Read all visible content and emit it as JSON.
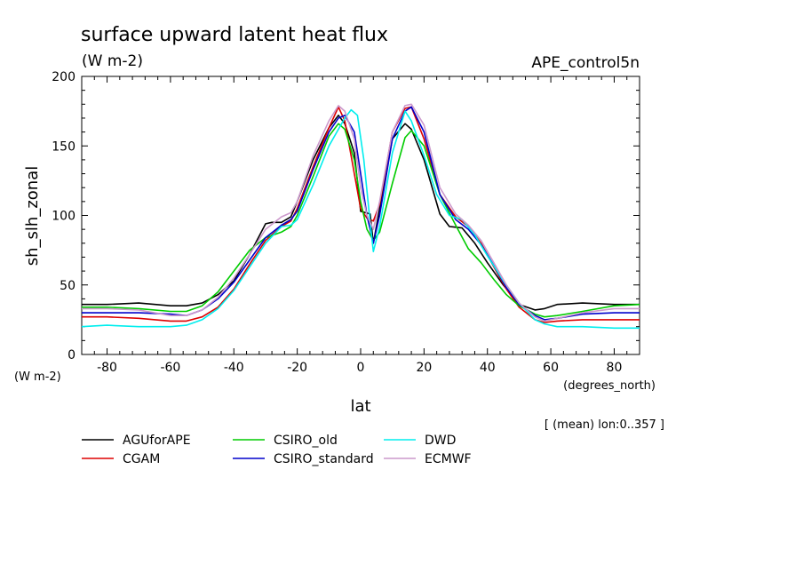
{
  "chart_data": {
    "type": "line",
    "title": "surface upward latent heat flux",
    "units_label": "(W m-2)",
    "run_label": "APE_control5n",
    "ylabel": "sh_slh_zonal",
    "y_units": "(W m-2)",
    "xlabel": "lat",
    "x_units": "(degrees_north)",
    "footnote": "[ (mean) lon:0..357 ]",
    "xlim": [
      -88,
      88
    ],
    "ylim": [
      0,
      200
    ],
    "x_ticks": [
      -80,
      -60,
      -40,
      -20,
      0,
      20,
      40,
      60,
      80
    ],
    "y_ticks": [
      0,
      50,
      100,
      150,
      200
    ],
    "x_tick_labels": [
      "-80",
      "-60",
      "-40",
      "-20",
      "0",
      "20",
      "40",
      "60",
      "80"
    ],
    "y_tick_labels": [
      "0",
      "50",
      "100",
      "150",
      "200"
    ],
    "grid": false,
    "legend_position": "bottom",
    "series": [
      {
        "name": "AGUforAPE",
        "color": "#000000",
        "points": [
          [
            -88,
            36
          ],
          [
            -80,
            36
          ],
          [
            -70,
            37
          ],
          [
            -60,
            35
          ],
          [
            -55,
            35
          ],
          [
            -50,
            37
          ],
          [
            -45,
            43
          ],
          [
            -40,
            53
          ],
          [
            -35,
            72
          ],
          [
            -30,
            94
          ],
          [
            -28,
            95
          ],
          [
            -25,
            95
          ],
          [
            -22,
            99
          ],
          [
            -20,
            110
          ],
          [
            -15,
            140
          ],
          [
            -10,
            163
          ],
          [
            -7,
            172
          ],
          [
            -5,
            166
          ],
          [
            -2,
            145
          ],
          [
            0,
            103
          ],
          [
            3,
            101
          ],
          [
            4,
            80
          ],
          [
            6,
            105
          ],
          [
            10,
            155
          ],
          [
            14,
            166
          ],
          [
            16,
            162
          ],
          [
            20,
            140
          ],
          [
            25,
            101
          ],
          [
            28,
            92
          ],
          [
            32,
            91
          ],
          [
            36,
            80
          ],
          [
            40,
            66
          ],
          [
            45,
            50
          ],
          [
            50,
            36
          ],
          [
            55,
            32
          ],
          [
            58,
            33
          ],
          [
            62,
            36
          ],
          [
            70,
            37
          ],
          [
            80,
            36
          ],
          [
            88,
            36
          ]
        ]
      },
      {
        "name": "CGAM",
        "color": "#dd0000",
        "points": [
          [
            -88,
            27
          ],
          [
            -80,
            27
          ],
          [
            -70,
            26
          ],
          [
            -60,
            24
          ],
          [
            -55,
            24
          ],
          [
            -50,
            27
          ],
          [
            -45,
            34
          ],
          [
            -40,
            47
          ],
          [
            -35,
            65
          ],
          [
            -30,
            82
          ],
          [
            -25,
            92
          ],
          [
            -22,
            96
          ],
          [
            -20,
            105
          ],
          [
            -15,
            135
          ],
          [
            -10,
            163
          ],
          [
            -7,
            178
          ],
          [
            -5,
            168
          ],
          [
            -2,
            130
          ],
          [
            0,
            105
          ],
          [
            2,
            98
          ],
          [
            4,
            96
          ],
          [
            6,
            108
          ],
          [
            10,
            160
          ],
          [
            14,
            177
          ],
          [
            16,
            178
          ],
          [
            20,
            155
          ],
          [
            25,
            115
          ],
          [
            30,
            99
          ],
          [
            34,
            92
          ],
          [
            38,
            80
          ],
          [
            42,
            63
          ],
          [
            46,
            47
          ],
          [
            50,
            34
          ],
          [
            55,
            25
          ],
          [
            58,
            23
          ],
          [
            62,
            24
          ],
          [
            70,
            25
          ],
          [
            80,
            25
          ],
          [
            88,
            25
          ]
        ]
      },
      {
        "name": "CSIRO_old",
        "color": "#00cc00",
        "points": [
          [
            -88,
            34
          ],
          [
            -80,
            34
          ],
          [
            -70,
            33
          ],
          [
            -60,
            31
          ],
          [
            -55,
            31
          ],
          [
            -50,
            35
          ],
          [
            -45,
            45
          ],
          [
            -40,
            60
          ],
          [
            -35,
            75
          ],
          [
            -30,
            84
          ],
          [
            -25,
            88
          ],
          [
            -22,
            92
          ],
          [
            -20,
            100
          ],
          [
            -15,
            128
          ],
          [
            -10,
            157
          ],
          [
            -7,
            166
          ],
          [
            -5,
            162
          ],
          [
            -2,
            140
          ],
          [
            0,
            110
          ],
          [
            2,
            90
          ],
          [
            4,
            82
          ],
          [
            6,
            88
          ],
          [
            10,
            123
          ],
          [
            14,
            156
          ],
          [
            16,
            161
          ],
          [
            20,
            150
          ],
          [
            25,
            115
          ],
          [
            30,
            93
          ],
          [
            34,
            76
          ],
          [
            38,
            66
          ],
          [
            42,
            54
          ],
          [
            46,
            43
          ],
          [
            50,
            35
          ],
          [
            55,
            29
          ],
          [
            58,
            27
          ],
          [
            62,
            28
          ],
          [
            70,
            31
          ],
          [
            80,
            35
          ],
          [
            88,
            36
          ]
        ]
      },
      {
        "name": "CSIRO_standard",
        "color": "#0000cc",
        "points": [
          [
            -88,
            30
          ],
          [
            -80,
            30
          ],
          [
            -70,
            30
          ],
          [
            -60,
            29
          ],
          [
            -55,
            28
          ],
          [
            -50,
            32
          ],
          [
            -45,
            40
          ],
          [
            -40,
            52
          ],
          [
            -35,
            68
          ],
          [
            -30,
            84
          ],
          [
            -25,
            93
          ],
          [
            -22,
            97
          ],
          [
            -20,
            103
          ],
          [
            -15,
            133
          ],
          [
            -10,
            160
          ],
          [
            -7,
            170
          ],
          [
            -5,
            172
          ],
          [
            -2,
            160
          ],
          [
            0,
            130
          ],
          [
            2,
            100
          ],
          [
            4,
            80
          ],
          [
            6,
            100
          ],
          [
            10,
            155
          ],
          [
            14,
            175
          ],
          [
            16,
            178
          ],
          [
            20,
            160
          ],
          [
            25,
            115
          ],
          [
            30,
            97
          ],
          [
            34,
            90
          ],
          [
            38,
            79
          ],
          [
            42,
            64
          ],
          [
            46,
            48
          ],
          [
            50,
            36
          ],
          [
            55,
            28
          ],
          [
            58,
            25
          ],
          [
            62,
            26
          ],
          [
            70,
            29
          ],
          [
            80,
            30
          ],
          [
            88,
            30
          ]
        ]
      },
      {
        "name": "DWD",
        "color": "#00eeee",
        "points": [
          [
            -88,
            20
          ],
          [
            -80,
            21
          ],
          [
            -70,
            20
          ],
          [
            -60,
            20
          ],
          [
            -55,
            21
          ],
          [
            -50,
            25
          ],
          [
            -45,
            33
          ],
          [
            -40,
            46
          ],
          [
            -35,
            63
          ],
          [
            -30,
            80
          ],
          [
            -25,
            92
          ],
          [
            -22,
            93
          ],
          [
            -20,
            97
          ],
          [
            -15,
            122
          ],
          [
            -10,
            150
          ],
          [
            -7,
            162
          ],
          [
            -5,
            170
          ],
          [
            -3,
            176
          ],
          [
            -1,
            172
          ],
          [
            1,
            140
          ],
          [
            3,
            95
          ],
          [
            4,
            74
          ],
          [
            6,
            92
          ],
          [
            10,
            145
          ],
          [
            14,
            175
          ],
          [
            16,
            168
          ],
          [
            20,
            143
          ],
          [
            24,
            115
          ],
          [
            28,
            100
          ],
          [
            32,
            97
          ],
          [
            36,
            86
          ],
          [
            40,
            71
          ],
          [
            45,
            53
          ],
          [
            50,
            37
          ],
          [
            55,
            25
          ],
          [
            58,
            22
          ],
          [
            62,
            20
          ],
          [
            70,
            20
          ],
          [
            80,
            19
          ],
          [
            88,
            19
          ]
        ]
      },
      {
        "name": "ECMWF",
        "color": "#cc99cc",
        "points": [
          [
            -88,
            33
          ],
          [
            -80,
            33
          ],
          [
            -70,
            32
          ],
          [
            -60,
            28
          ],
          [
            -55,
            28
          ],
          [
            -50,
            32
          ],
          [
            -45,
            41
          ],
          [
            -40,
            55
          ],
          [
            -35,
            72
          ],
          [
            -30,
            90
          ],
          [
            -25,
            99
          ],
          [
            -22,
            102
          ],
          [
            -20,
            110
          ],
          [
            -15,
            143
          ],
          [
            -10,
            168
          ],
          [
            -7,
            179
          ],
          [
            -5,
            175
          ],
          [
            -2,
            155
          ],
          [
            0,
            120
          ],
          [
            2,
            100
          ],
          [
            4,
            90
          ],
          [
            6,
            110
          ],
          [
            10,
            160
          ],
          [
            14,
            179
          ],
          [
            16,
            180
          ],
          [
            20,
            165
          ],
          [
            25,
            120
          ],
          [
            30,
            101
          ],
          [
            34,
            93
          ],
          [
            38,
            82
          ],
          [
            42,
            66
          ],
          [
            46,
            50
          ],
          [
            50,
            37
          ],
          [
            55,
            27
          ],
          [
            58,
            24
          ],
          [
            62,
            26
          ],
          [
            70,
            30
          ],
          [
            80,
            33
          ],
          [
            88,
            33
          ]
        ]
      }
    ]
  }
}
